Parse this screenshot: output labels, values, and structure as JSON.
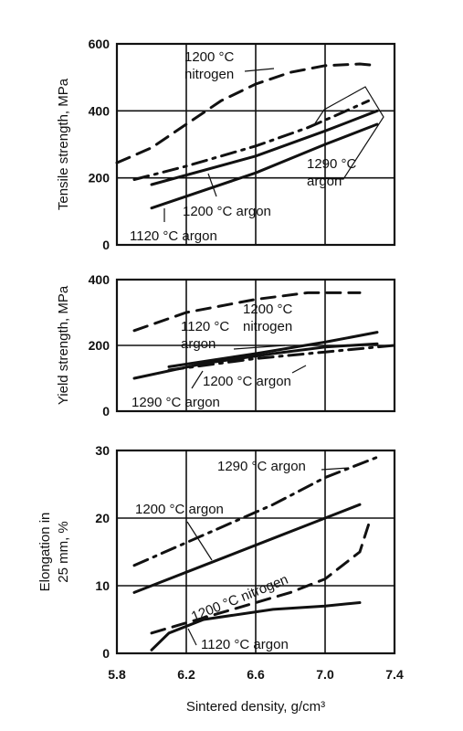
{
  "chart_data": [
    {
      "type": "line",
      "ylabel": "Tensile strength, MPa",
      "xlim": [
        5.8,
        7.4
      ],
      "ylim": [
        0,
        600
      ],
      "yticks": [
        "0",
        "200",
        "400",
        "600"
      ],
      "grid": true,
      "series": [
        {
          "name": "1200 °C nitrogen",
          "dash": "dashed",
          "points": [
            [
              5.8,
              245
            ],
            [
              6.0,
              290
            ],
            [
              6.2,
              360
            ],
            [
              6.4,
              430
            ],
            [
              6.6,
              480
            ],
            [
              6.8,
              515
            ],
            [
              7.0,
              535
            ],
            [
              7.2,
              540
            ],
            [
              7.3,
              535
            ]
          ]
        },
        {
          "name": "1290 °C argon",
          "dash": "dashdot",
          "points": [
            [
              5.9,
              195
            ],
            [
              6.2,
              235
            ],
            [
              6.6,
              295
            ],
            [
              6.9,
              350
            ],
            [
              7.1,
              395
            ],
            [
              7.25,
              430
            ]
          ]
        },
        {
          "name": "1200 °C argon",
          "dash": "solid",
          "points": [
            [
              6.0,
              180
            ],
            [
              6.6,
              265
            ],
            [
              7.0,
              340
            ],
            [
              7.3,
              400
            ]
          ]
        },
        {
          "name": "1120 °C argon",
          "dash": "solid",
          "points": [
            [
              6.0,
              110
            ],
            [
              6.6,
              215
            ],
            [
              7.0,
              300
            ],
            [
              7.3,
              360
            ]
          ]
        }
      ],
      "annotations": [
        {
          "lines": [
            "1200 °C",
            "nitrogen"
          ]
        },
        {
          "lines": [
            "1290 °C",
            "argon"
          ]
        },
        {
          "lines": [
            "1200 °C argon"
          ]
        },
        {
          "lines": [
            "1120 °C argon"
          ]
        }
      ]
    },
    {
      "type": "line",
      "ylabel": "Yield strength, MPa",
      "xlim": [
        5.8,
        7.4
      ],
      "ylim": [
        0,
        400
      ],
      "yticks": [
        "0",
        "200",
        "400"
      ],
      "grid": true,
      "series": [
        {
          "name": "1200 °C nitrogen",
          "dash": "dashed",
          "points": [
            [
              5.9,
              245
            ],
            [
              6.2,
              300
            ],
            [
              6.6,
              340
            ],
            [
              6.9,
              360
            ],
            [
              7.2,
              360
            ]
          ]
        },
        {
          "name": "1120 °C argon",
          "dash": "solid",
          "points": [
            [
              6.1,
              135
            ],
            [
              6.6,
              175
            ],
            [
              7.0,
              210
            ],
            [
              7.3,
              240
            ]
          ]
        },
        {
          "name": "1200 °C argon",
          "dash": "dashdot",
          "points": [
            [
              6.1,
              125
            ],
            [
              6.6,
              160
            ],
            [
              7.0,
              180
            ],
            [
              7.4,
              200
            ]
          ]
        },
        {
          "name": "1290 °C argon",
          "dash": "solid",
          "points": [
            [
              5.9,
              100
            ],
            [
              6.3,
              145
            ],
            [
              6.7,
              175
            ],
            [
              7.0,
              195
            ],
            [
              7.3,
              205
            ]
          ]
        }
      ],
      "annotations": [
        {
          "lines": [
            "1200 °C",
            "nitrogen"
          ]
        },
        {
          "lines": [
            "1120 °C",
            "argon"
          ]
        },
        {
          "lines": [
            "1200 °C argon"
          ]
        },
        {
          "lines": [
            "1290 °C argon"
          ]
        }
      ]
    },
    {
      "type": "line",
      "ylabel": "Elongation in 25 mm, %",
      "ylabel_lines": [
        "Elongation in",
        "25 mm, %"
      ],
      "xlabel": "Sintered density, g/cm³",
      "xlim": [
        5.8,
        7.4
      ],
      "ylim": [
        0,
        30
      ],
      "xticks": [
        "5.8",
        "6.2",
        "6.6",
        "7.0",
        "7.4"
      ],
      "yticks": [
        "0",
        "10",
        "20",
        "30"
      ],
      "grid": true,
      "series": [
        {
          "name": "1290 °C argon",
          "dash": "dashdot",
          "points": [
            [
              5.9,
              13
            ],
            [
              6.3,
              17.5
            ],
            [
              6.7,
              22
            ],
            [
              7.0,
              26
            ],
            [
              7.3,
              29
            ]
          ]
        },
        {
          "name": "1200 °C argon",
          "dash": "solid",
          "points": [
            [
              5.9,
              9
            ],
            [
              6.3,
              13
            ],
            [
              6.7,
              17
            ],
            [
              7.0,
              20
            ],
            [
              7.2,
              22
            ]
          ]
        },
        {
          "name": "1200 °C nitrogen",
          "dash": "dashed",
          "points": [
            [
              6.0,
              3
            ],
            [
              6.4,
              6
            ],
            [
              6.8,
              9
            ],
            [
              7.0,
              11
            ],
            [
              7.1,
              13
            ],
            [
              7.2,
              15
            ],
            [
              7.25,
              19
            ]
          ]
        },
        {
          "name": "1120 °C argon",
          "dash": "solid",
          "points": [
            [
              6.0,
              0.5
            ],
            [
              6.1,
              3
            ],
            [
              6.3,
              5
            ],
            [
              6.7,
              6.5
            ],
            [
              7.0,
              7
            ],
            [
              7.2,
              7.5
            ]
          ]
        }
      ],
      "annotations": [
        {
          "lines": [
            "1290 °C argon"
          ]
        },
        {
          "lines": [
            "1200 °C argon"
          ]
        },
        {
          "lines": [
            "1200 °C nitrogen"
          ]
        },
        {
          "lines": [
            "1120 °C argon"
          ]
        }
      ]
    }
  ]
}
